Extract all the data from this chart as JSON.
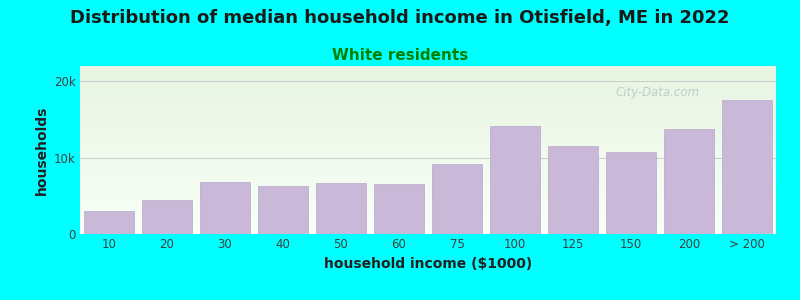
{
  "title": "Distribution of median household income in Otisfield, ME in 2022",
  "subtitle": "White residents",
  "xlabel": "household income ($1000)",
  "ylabel": "households",
  "background_color": "#00FFFF",
  "plot_bg_top": "#e8f5e2",
  "plot_bg_bottom": "#f8fff8",
  "bar_color": "#c9b8d8",
  "bar_edge_color": "#b8a8cc",
  "categories": [
    "10",
    "20",
    "30",
    "40",
    "50",
    "60",
    "75",
    "100",
    "125",
    "150",
    "200",
    "> 200"
  ],
  "values": [
    3000,
    4500,
    6800,
    6300,
    6700,
    6500,
    9200,
    14200,
    11500,
    10800,
    13800,
    17600
  ],
  "yticks": [
    0,
    10000,
    20000
  ],
  "ytick_labels": [
    "0",
    "10k",
    "20k"
  ],
  "ylim": [
    0,
    22000
  ],
  "title_fontsize": 13,
  "subtitle_fontsize": 11,
  "axis_label_fontsize": 10,
  "tick_fontsize": 8.5,
  "watermark_text": "City-Data.com",
  "watermark_color": "#b0c8c8"
}
